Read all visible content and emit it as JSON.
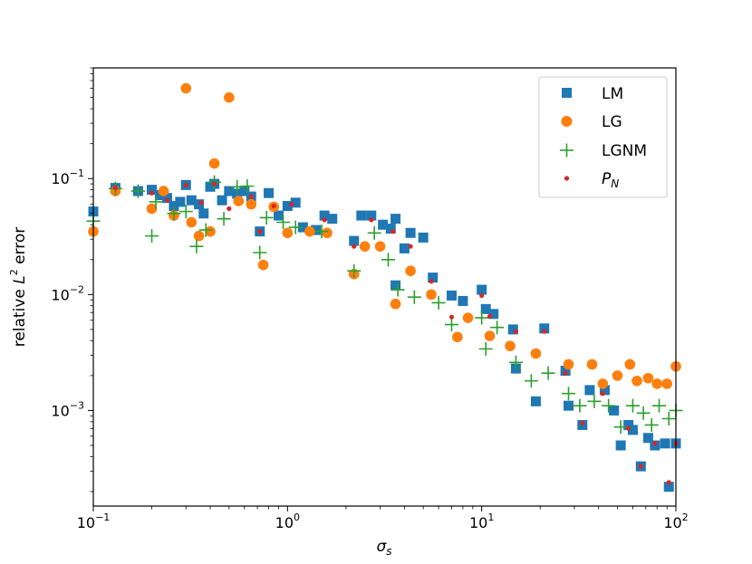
{
  "chart_data": {
    "type": "scatter",
    "title": "",
    "xscale": "log",
    "yscale": "log",
    "xlim": [
      0.1,
      100
    ],
    "ylim": [
      0.00015,
      0.9
    ],
    "xlabel": {
      "base": "σ",
      "sub": "s"
    },
    "ylabel": {
      "pre": "relative ",
      "var": "L",
      "sup": "2",
      "post": " error"
    },
    "xticks": [
      {
        "value": 0.1,
        "base": "10",
        "exp": "−1"
      },
      {
        "value": 1,
        "base": "10",
        "exp": "0"
      },
      {
        "value": 10,
        "base": "10",
        "exp": "1"
      },
      {
        "value": 100,
        "base": "10",
        "exp": "2"
      }
    ],
    "yticks": [
      {
        "value": 0.001,
        "base": "10",
        "exp": "−3"
      },
      {
        "value": 0.01,
        "base": "10",
        "exp": "−2"
      },
      {
        "value": 0.1,
        "base": "10",
        "exp": "−1"
      }
    ],
    "legend_position": "top-right",
    "series": [
      {
        "name": "LM",
        "label": "LM",
        "marker": "square",
        "color": "#1f77b4",
        "points": [
          [
            0.1,
            0.052
          ],
          [
            0.13,
            0.083
          ],
          [
            0.17,
            0.078
          ],
          [
            0.2,
            0.08
          ],
          [
            0.22,
            0.072
          ],
          [
            0.24,
            0.068
          ],
          [
            0.26,
            0.058
          ],
          [
            0.28,
            0.063
          ],
          [
            0.3,
            0.088
          ],
          [
            0.32,
            0.065
          ],
          [
            0.35,
            0.06
          ],
          [
            0.37,
            0.05
          ],
          [
            0.4,
            0.085
          ],
          [
            0.42,
            0.09
          ],
          [
            0.46,
            0.065
          ],
          [
            0.5,
            0.078
          ],
          [
            0.55,
            0.074
          ],
          [
            0.6,
            0.078
          ],
          [
            0.65,
            0.07
          ],
          [
            0.72,
            0.035
          ],
          [
            0.8,
            0.075
          ],
          [
            0.9,
            0.048
          ],
          [
            1.0,
            0.058
          ],
          [
            1.1,
            0.062
          ],
          [
            1.2,
            0.038
          ],
          [
            1.4,
            0.036
          ],
          [
            1.55,
            0.048
          ],
          [
            1.7,
            0.045
          ],
          [
            2.2,
            0.029
          ],
          [
            2.4,
            0.048
          ],
          [
            2.7,
            0.048
          ],
          [
            3.1,
            0.04
          ],
          [
            3.4,
            0.037
          ],
          [
            3.6,
            0.045
          ],
          [
            4.0,
            0.025
          ],
          [
            4.3,
            0.034
          ],
          [
            5.0,
            0.031
          ],
          [
            5.6,
            0.014
          ],
          [
            3.6,
            0.012
          ],
          [
            7.0,
            0.0098
          ],
          [
            8.0,
            0.0088
          ],
          [
            10.0,
            0.011
          ],
          [
            10.5,
            0.0075
          ],
          [
            11.5,
            0.0068
          ],
          [
            14.5,
            0.005
          ],
          [
            15.0,
            0.0023
          ],
          [
            19.0,
            0.0012
          ],
          [
            21.0,
            0.0051
          ],
          [
            27.0,
            0.0022
          ],
          [
            28.0,
            0.0011
          ],
          [
            33.0,
            0.00075
          ],
          [
            36.0,
            0.0015
          ],
          [
            43.0,
            0.0015
          ],
          [
            48.0,
            0.001
          ],
          [
            52.0,
            0.0005
          ],
          [
            57.0,
            0.00075
          ],
          [
            60.0,
            0.00068
          ],
          [
            66.0,
            0.00033
          ],
          [
            72.0,
            0.00058
          ],
          [
            78.0,
            0.0005
          ],
          [
            88.0,
            0.00052
          ],
          [
            92.0,
            0.00022
          ],
          [
            100.0,
            0.00052
          ]
        ]
      },
      {
        "name": "LG",
        "label": "LG",
        "marker": "circle",
        "color": "#ff7f0e",
        "points": [
          [
            0.1,
            0.035
          ],
          [
            0.13,
            0.078
          ],
          [
            0.2,
            0.055
          ],
          [
            0.23,
            0.078
          ],
          [
            0.26,
            0.048
          ],
          [
            0.3,
            0.6
          ],
          [
            0.32,
            0.042
          ],
          [
            0.35,
            0.032
          ],
          [
            0.4,
            0.035
          ],
          [
            0.42,
            0.135
          ],
          [
            0.5,
            0.5
          ],
          [
            0.56,
            0.064
          ],
          [
            0.65,
            0.06
          ],
          [
            0.75,
            0.018
          ],
          [
            0.85,
            0.057
          ],
          [
            1.0,
            0.034
          ],
          [
            1.3,
            0.035
          ],
          [
            1.6,
            0.034
          ],
          [
            2.2,
            0.015
          ],
          [
            2.5,
            0.026
          ],
          [
            3.0,
            0.026
          ],
          [
            3.6,
            0.0083
          ],
          [
            4.3,
            0.016
          ],
          [
            5.5,
            0.01
          ],
          [
            7.5,
            0.0043
          ],
          [
            8.5,
            0.0063
          ],
          [
            11.0,
            0.0044
          ],
          [
            14.0,
            0.0036
          ],
          [
            19.0,
            0.0031
          ],
          [
            28.0,
            0.0025
          ],
          [
            37.0,
            0.0025
          ],
          [
            42.0,
            0.0017
          ],
          [
            50.0,
            0.002
          ],
          [
            58.0,
            0.0025
          ],
          [
            63.0,
            0.0018
          ],
          [
            72.0,
            0.0019
          ],
          [
            80.0,
            0.0017
          ],
          [
            90.0,
            0.0017
          ],
          [
            100.0,
            0.0024
          ]
        ]
      },
      {
        "name": "LGNM",
        "label": "LGNM",
        "marker": "plus",
        "color": "#2ca02c",
        "points": [
          [
            0.1,
            0.043
          ],
          [
            0.13,
            0.082
          ],
          [
            0.17,
            0.078
          ],
          [
            0.2,
            0.032
          ],
          [
            0.21,
            0.063
          ],
          [
            0.26,
            0.05
          ],
          [
            0.3,
            0.052
          ],
          [
            0.34,
            0.026
          ],
          [
            0.38,
            0.036
          ],
          [
            0.42,
            0.093
          ],
          [
            0.47,
            0.045
          ],
          [
            0.55,
            0.085
          ],
          [
            0.62,
            0.086
          ],
          [
            0.72,
            0.023
          ],
          [
            0.78,
            0.046
          ],
          [
            0.95,
            0.042
          ],
          [
            1.1,
            0.038
          ],
          [
            1.5,
            0.035
          ],
          [
            2.2,
            0.016
          ],
          [
            2.8,
            0.034
          ],
          [
            3.3,
            0.02
          ],
          [
            3.7,
            0.011
          ],
          [
            4.5,
            0.0095
          ],
          [
            6.0,
            0.0085
          ],
          [
            7.0,
            0.0055
          ],
          [
            10.0,
            0.0063
          ],
          [
            10.5,
            0.0034
          ],
          [
            12.0,
            0.0052
          ],
          [
            15.0,
            0.0026
          ],
          [
            18.0,
            0.0018
          ],
          [
            22.0,
            0.0021
          ],
          [
            28.0,
            0.0014
          ],
          [
            32.0,
            0.0011
          ],
          [
            38.0,
            0.0012
          ],
          [
            45.0,
            0.0011
          ],
          [
            52.0,
            0.00072
          ],
          [
            60.0,
            0.0011
          ],
          [
            68.0,
            0.00095
          ],
          [
            75.0,
            0.00075
          ],
          [
            82.0,
            0.0011
          ],
          [
            92.0,
            0.00085
          ],
          [
            100.0,
            0.001
          ]
        ]
      },
      {
        "name": "PN",
        "label": "P",
        "label_sub": "N",
        "marker": "dot",
        "color": "#d62728",
        "points": [
          [
            0.13,
            0.083
          ],
          [
            0.2,
            0.075
          ],
          [
            0.24,
            0.065
          ],
          [
            0.3,
            0.088
          ],
          [
            0.36,
            0.062
          ],
          [
            0.42,
            0.09
          ],
          [
            0.5,
            0.055
          ],
          [
            0.65,
            0.07
          ],
          [
            0.72,
            0.035
          ],
          [
            0.85,
            0.058
          ],
          [
            1.05,
            0.06
          ],
          [
            1.55,
            0.044
          ],
          [
            2.2,
            0.026
          ],
          [
            2.7,
            0.044
          ],
          [
            3.5,
            0.035
          ],
          [
            4.3,
            0.026
          ],
          [
            5.5,
            0.013
          ],
          [
            7.0,
            0.0064
          ],
          [
            10.0,
            0.0098
          ],
          [
            11.0,
            0.0065
          ],
          [
            15.0,
            0.0048
          ],
          [
            21.0,
            0.0048
          ],
          [
            27.0,
            0.0021
          ],
          [
            33.0,
            0.00078
          ],
          [
            42.0,
            0.0014
          ],
          [
            57.0,
            0.0007
          ],
          [
            66.0,
            0.00033
          ],
          [
            78.0,
            0.00052
          ],
          [
            92.0,
            0.00024
          ],
          [
            100.0,
            0.00052
          ]
        ]
      }
    ]
  }
}
